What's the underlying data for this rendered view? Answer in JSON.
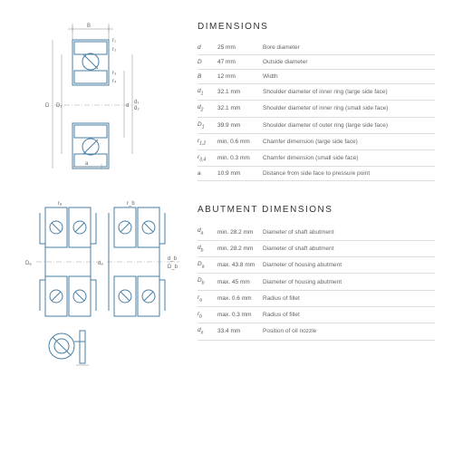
{
  "colors": {
    "line": "#4a7fa5",
    "dim": "#888",
    "bg": "#fff",
    "heading": "#333",
    "text": "#555",
    "border": "#ddd"
  },
  "sections": {
    "dimensions": {
      "title": "DIMENSIONS",
      "rows": [
        {
          "sym": "d",
          "sub": "",
          "val": "25 mm",
          "desc": "Bore diameter"
        },
        {
          "sym": "D",
          "sub": "",
          "val": "47 mm",
          "desc": "Outside diameter"
        },
        {
          "sym": "B",
          "sub": "",
          "val": "12 mm",
          "desc": "Width"
        },
        {
          "sym": "d",
          "sub": "1",
          "val": "32.1 mm",
          "desc": "Shoulder diameter of inner ring (large side face)"
        },
        {
          "sym": "d",
          "sub": "2",
          "val": "32.1 mm",
          "desc": "Shoulder diameter of inner ring (small side face)"
        },
        {
          "sym": "D",
          "sub": "1",
          "val": "39.9 mm",
          "desc": "Shoulder diameter of outer ring (large side face)"
        },
        {
          "sym": "r",
          "sub": "1,2",
          "val": "min. 0.6 mm",
          "desc": "Chamfer dimension (large side face)"
        },
        {
          "sym": "r",
          "sub": "3,4",
          "val": "min. 0.3 mm",
          "desc": "Chamfer dimension (small side face)"
        },
        {
          "sym": "a",
          "sub": "",
          "val": "10.9 mm",
          "desc": "Distance from side face to pressure point"
        }
      ]
    },
    "abutment": {
      "title": "ABUTMENT DIMENSIONS",
      "rows": [
        {
          "sym": "d",
          "sub": "a",
          "val": "min. 28.2 mm",
          "desc": "Diameter of shaft abutment"
        },
        {
          "sym": "d",
          "sub": "b",
          "val": "min. 28.2 mm",
          "desc": "Diameter of shaft abutment"
        },
        {
          "sym": "D",
          "sub": "a",
          "val": "max. 43.8 mm",
          "desc": "Diameter of housing abutment"
        },
        {
          "sym": "D",
          "sub": "b",
          "val": "max. 45 mm",
          "desc": "Diameter of housing abutment"
        },
        {
          "sym": "r",
          "sub": "a",
          "val": "max. 0.6 mm",
          "desc": "Radius of fillet"
        },
        {
          "sym": "r",
          "sub": "b",
          "val": "max. 0.3 mm",
          "desc": "Radius of fillet"
        },
        {
          "sym": "d",
          "sub": "n",
          "val": "33.4 mm",
          "desc": "Position of oil nozzle"
        }
      ]
    }
  },
  "labels": {
    "B": "B",
    "r1": "r₁",
    "r2": "r₂",
    "r3": "r₃",
    "r4": "r₄",
    "D": "D",
    "D1": "D₁",
    "d": "d",
    "d1": "d₁",
    "d2": "d₂",
    "a": "a",
    "Da": "Dₐ",
    "da": "dₐ",
    "Db": "D_b",
    "db": "d_b",
    "ra": "rₐ",
    "rb": "r_b",
    "dn": "dₙ"
  }
}
